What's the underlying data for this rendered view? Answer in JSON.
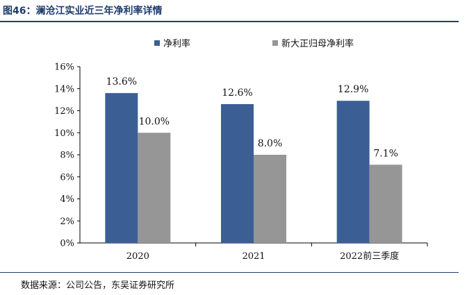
{
  "title": "图46：澜沧江实业近三年净利率详情",
  "source": "数据来源：公司公告，东吴证券研究所",
  "chart_data": {
    "type": "bar",
    "categories": [
      "2020",
      "2021",
      "2022前三季度"
    ],
    "series": [
      {
        "name": "净利率",
        "values": [
          13.6,
          12.6,
          12.9
        ],
        "labels": [
          "13.6%",
          "12.6%",
          "12.9%"
        ],
        "color": "#3b5f95"
      },
      {
        "name": "新大正归母净利率",
        "values": [
          10.0,
          8.0,
          7.1
        ],
        "labels": [
          "10.0%",
          "8.0%",
          "7.1%"
        ],
        "color": "#969696"
      }
    ],
    "ylim": [
      0,
      16
    ],
    "yticks": [
      "0%",
      "2%",
      "4%",
      "6%",
      "8%",
      "10%",
      "12%",
      "14%",
      "16%"
    ],
    "legend_position": "top",
    "grid": false
  }
}
